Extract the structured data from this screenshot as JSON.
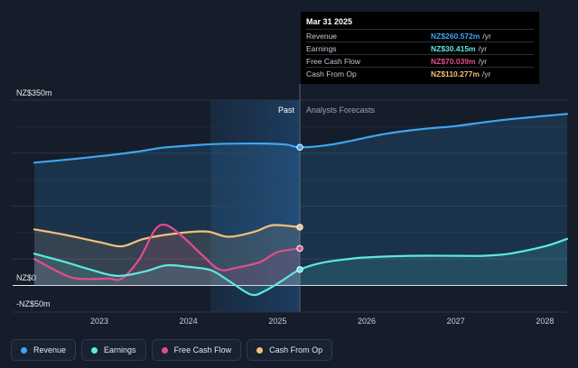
{
  "colors": {
    "revenue": "#3fa6f2",
    "earnings": "#5de9e0",
    "free_cash_flow": "#e14e8c",
    "cash_from_op": "#f5c07a",
    "background": "#151d2a"
  },
  "chart_data": {
    "type": "line",
    "y_labels": {
      "top": "NZ$350m",
      "zero": "NZ$0",
      "bottom": "-NZ$50m"
    },
    "ylim": [
      -50,
      350
    ],
    "xlim": [
      2022.27,
      2028.25
    ],
    "x_ticks": [
      "2023",
      "2024",
      "2025",
      "2026",
      "2027",
      "2028"
    ],
    "x_tick_values": [
      2023,
      2024,
      2025,
      2026,
      2027,
      2028
    ],
    "region_labels": {
      "past": "Past",
      "forecast": "Analysts Forecasts"
    },
    "highlight_range": [
      2024.25,
      2025.25
    ],
    "divider_x": 2025.25,
    "grid": true,
    "series": [
      {
        "name": "Revenue",
        "key": "revenue",
        "x": [
          2022.27,
          2022.6,
          2023.0,
          2023.4,
          2023.7,
          2024.0,
          2024.3,
          2024.8,
          2025.1,
          2025.25,
          2025.6,
          2026.2,
          2026.6,
          2027.0,
          2027.5,
          2028.25
        ],
        "y": [
          232,
          237,
          244,
          252,
          260,
          264,
          267,
          268,
          266,
          261,
          266,
          286,
          295,
          301,
          312,
          324
        ],
        "forecast_from": 2025.25
      },
      {
        "name": "Earnings",
        "key": "earnings",
        "x": [
          2022.27,
          2022.6,
          2022.9,
          2023.2,
          2023.5,
          2023.75,
          2024.0,
          2024.25,
          2024.45,
          2024.7,
          2024.85,
          2025.05,
          2025.25,
          2025.5,
          2025.8,
          2026.0,
          2026.5,
          2027.0,
          2027.3,
          2027.6,
          2028.0,
          2028.25
        ],
        "y": [
          60,
          45,
          30,
          18,
          26,
          38,
          35,
          29,
          9,
          -17,
          -11,
          9,
          30,
          43,
          50,
          53,
          56,
          56,
          56,
          60,
          74,
          88
        ],
        "forecast_from": 2025.25
      },
      {
        "name": "Free Cash Flow",
        "key": "free_cash_flow",
        "x": [
          2022.27,
          2022.55,
          2022.75,
          2023.1,
          2023.25,
          2023.45,
          2023.62,
          2023.75,
          2023.95,
          2024.15,
          2024.35,
          2024.55,
          2024.8,
          2025.0,
          2025.25
        ],
        "y": [
          50,
          25,
          13,
          13,
          13,
          50,
          104,
          114,
          90,
          58,
          30,
          34,
          44,
          63,
          70
        ]
      },
      {
        "name": "Cash From Op",
        "key": "cash_from_op",
        "x": [
          2022.27,
          2022.6,
          2023.0,
          2023.25,
          2023.5,
          2023.85,
          2024.2,
          2024.45,
          2024.75,
          2024.95,
          2025.25
        ],
        "y": [
          106,
          96,
          82,
          74,
          88,
          98,
          102,
          92,
          102,
          114,
          110
        ]
      }
    ],
    "tooltip": {
      "date": "Mar 31 2025",
      "rows": [
        {
          "name": "Revenue",
          "value": "NZ$260.572m",
          "unit": "/yr",
          "key": "revenue"
        },
        {
          "name": "Earnings",
          "value": "NZ$30.415m",
          "unit": "/yr",
          "key": "earnings"
        },
        {
          "name": "Free Cash Flow",
          "value": "NZ$70.039m",
          "unit": "/yr",
          "key": "free_cash_flow"
        },
        {
          "name": "Cash From Op",
          "value": "NZ$110.277m",
          "unit": "/yr",
          "key": "cash_from_op"
        }
      ]
    }
  },
  "legend": [
    {
      "label": "Revenue",
      "key": "revenue"
    },
    {
      "label": "Earnings",
      "key": "earnings"
    },
    {
      "label": "Free Cash Flow",
      "key": "free_cash_flow"
    },
    {
      "label": "Cash From Op",
      "key": "cash_from_op"
    }
  ]
}
